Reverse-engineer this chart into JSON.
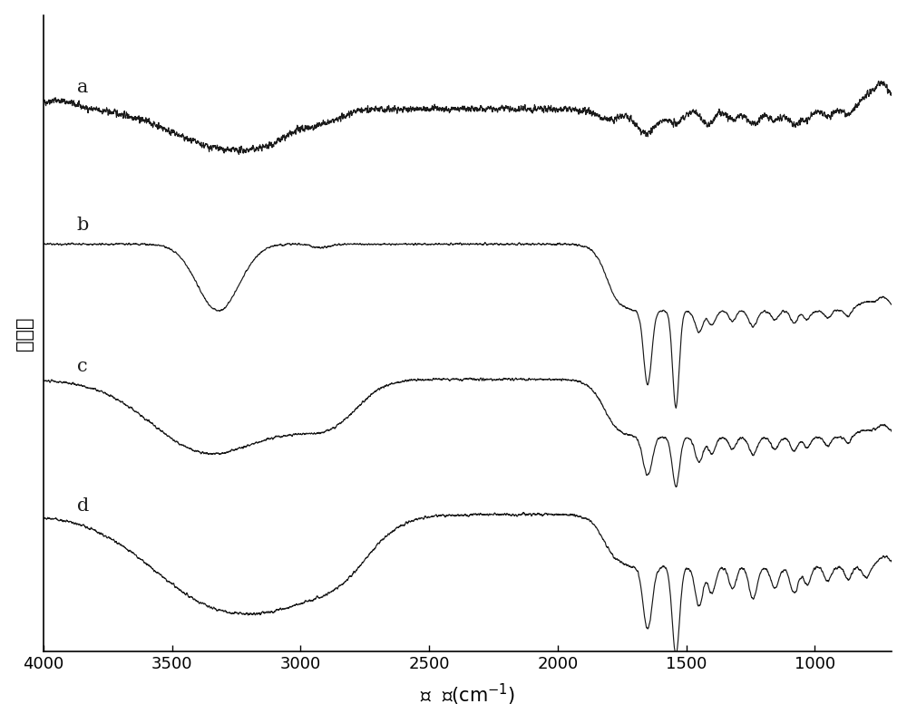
{
  "x_min": 700,
  "x_max": 4000,
  "x_ticks": [
    4000,
    3500,
    3000,
    2500,
    2000,
    1500,
    1000
  ],
  "xlabel": "波  数(cm$^{-1}$)",
  "ylabel": "透射率",
  "background_color": "#ffffff",
  "line_color": "#1a1a1a",
  "label_a": "a",
  "label_b": "b",
  "label_c": "c",
  "label_d": "d",
  "noise_seed": 42,
  "figsize": [
    10.0,
    7.98
  ],
  "dpi": 100
}
